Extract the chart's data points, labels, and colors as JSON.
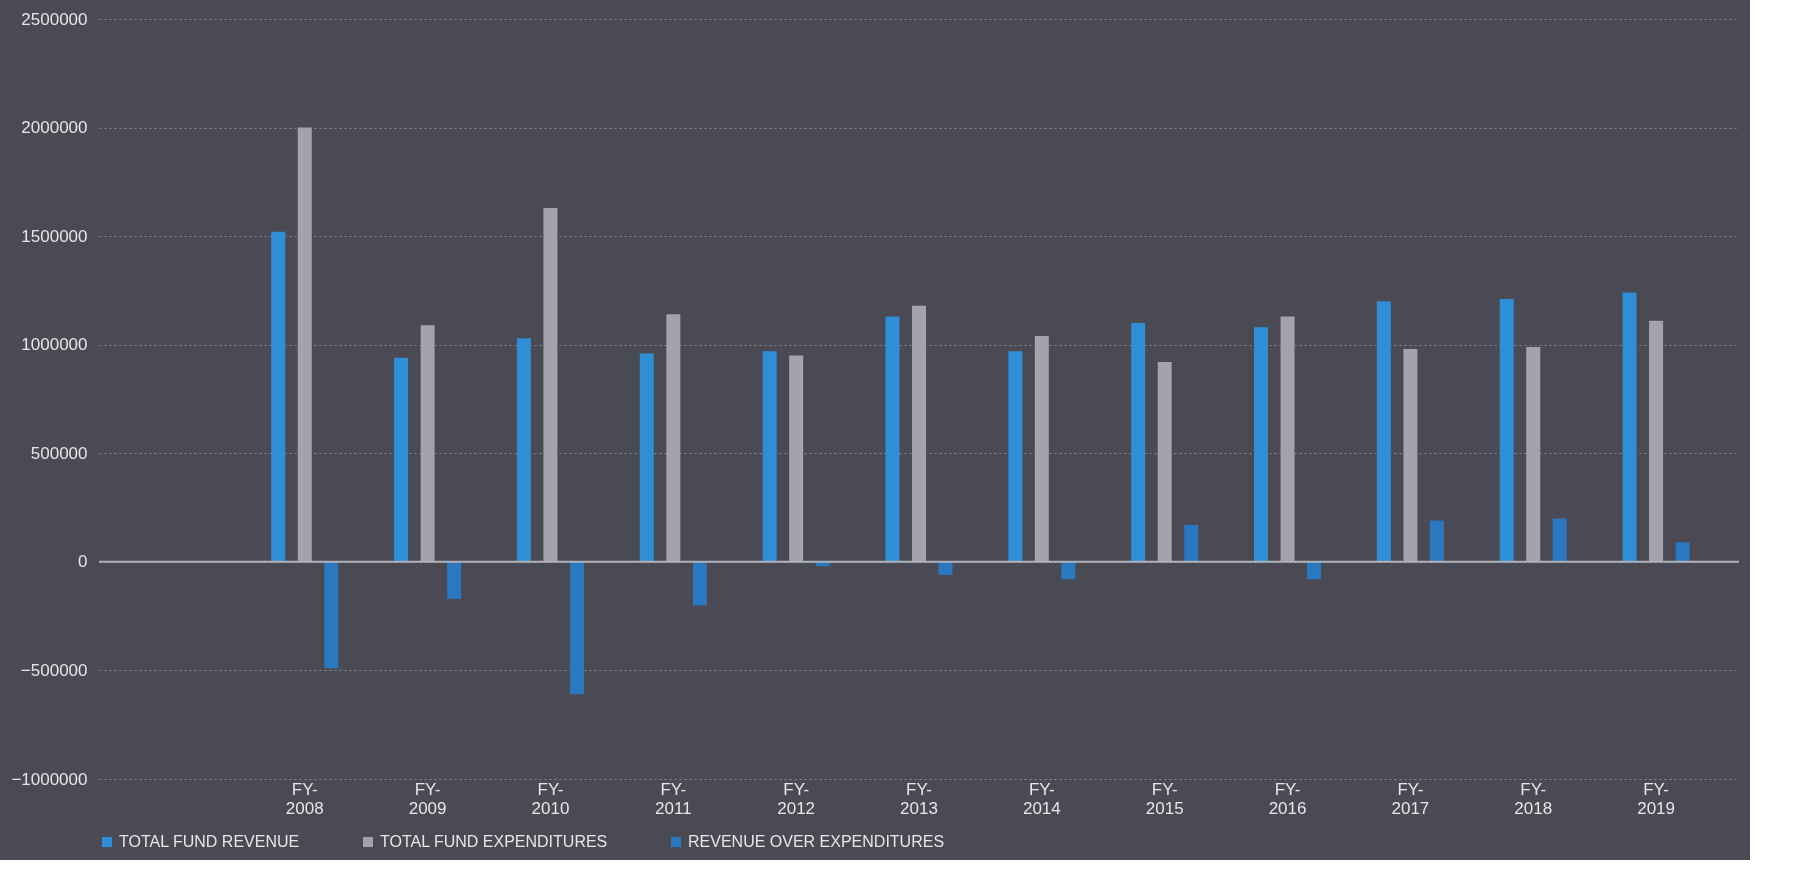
{
  "chart_data": {
    "type": "bar",
    "categories": [
      null,
      "FY-2008",
      "FY-2009",
      "FY-2010",
      "FY-2011",
      "FY-2012",
      "FY-2013",
      "FY-2014",
      "FY-2015",
      "FY-2016",
      "FY-2017",
      "FY-2018",
      "FY-2019"
    ],
    "series": [
      {
        "name": "TOTAL FUND REVENUE",
        "color": "#2e8fd6",
        "values": [
          null,
          1520000,
          940000,
          1030000,
          960000,
          970000,
          1130000,
          970000,
          1100000,
          1080000,
          1200000,
          1210000,
          1240000
        ]
      },
      {
        "name": "TOTAL FUND EXPENDITURES",
        "color": "#a3a3ab",
        "values": [
          null,
          2000000,
          1090000,
          1630000,
          1140000,
          950000,
          1180000,
          1040000,
          920000,
          1130000,
          980000,
          990000,
          1110000
        ]
      },
      {
        "name": "REVENUE OVER EXPENDITURES",
        "color": "#2a78c0",
        "values": [
          null,
          -490000,
          -170000,
          -610000,
          -200000,
          -20000,
          -60000,
          -80000,
          170000,
          -80000,
          190000,
          200000,
          90000
        ]
      }
    ],
    "ylim": [
      -1000000,
      2500000
    ],
    "yticks": [
      -1000000,
      -500000,
      0,
      500000,
      1000000,
      1500000,
      2000000,
      2500000
    ],
    "grid": "y",
    "legend": "bottom"
  }
}
